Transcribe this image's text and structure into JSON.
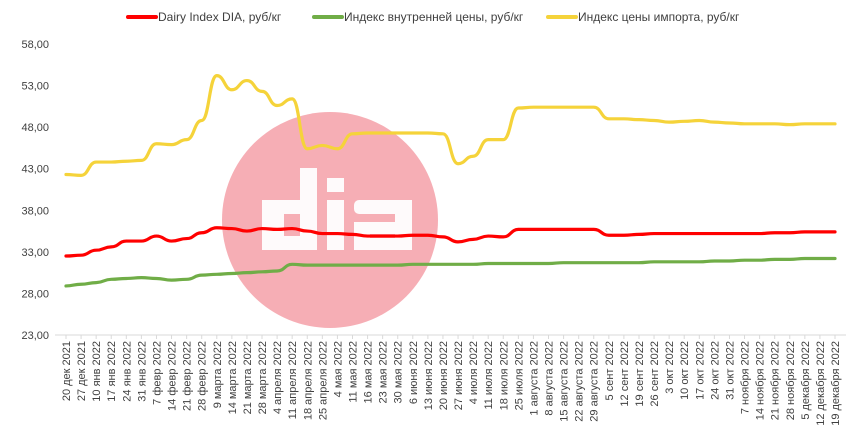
{
  "chart_data": {
    "type": "line",
    "title": "",
    "xlabel": "",
    "ylabel": "",
    "ylim": [
      23,
      58
    ],
    "yticks": [
      "23,00",
      "28,00",
      "33,00",
      "38,00",
      "43,00",
      "48,00",
      "53,00",
      "58,00"
    ],
    "legend_position": "top",
    "grid": false,
    "categories": [
      "20 дек 2021",
      "27 дек 2021",
      "10 янв 2022",
      "17 янв 2022",
      "24 янв 2022",
      "31 янв 2022",
      "7 февр 2022",
      "14 февр 2022",
      "21 февр 2022",
      "28 февр 2022",
      "9 марта 2022",
      "14 марта 2022",
      "21 марта 2022",
      "28 марта 2022",
      "4 апреля 2022",
      "11 апреля 2022",
      "18 апреля 2022",
      "25 апреля 2022",
      "4 мая 2022",
      "11 мая 2022",
      "16 мая 2022",
      "23 мая 2022",
      "30 мая 2022",
      "6 июня 2022",
      "13 июня 2022",
      "20 июня 2022",
      "27 июня 2022",
      "4 июля 2022",
      "11 июля 2022",
      "18 июля 2022",
      "25 июля 2022",
      "1 августа 2022",
      "8 августа 2022",
      "15 августа 2022",
      "22 августа 2022",
      "29 августа 2022",
      "5 сент 2022",
      "12 сент 2022",
      "19 сент 2022",
      "26 сент 2022",
      "3 окт 2022",
      "10 окт 2022",
      "17 окт 2022",
      "24 окт 2022",
      "31 окт 2022",
      "7 ноября 2022",
      "14 ноября 2022",
      "21 ноября 2022",
      "28 ноября 2022",
      "5 декабря 2022",
      "12 декабря 2022",
      "19 декабря 2022"
    ],
    "series": [
      {
        "name": "Dairy Index DIA,  руб/кг",
        "color": "#ff0000",
        "values": [
          32.5,
          32.6,
          33.2,
          33.6,
          34.3,
          34.3,
          34.9,
          34.3,
          34.6,
          35.3,
          35.9,
          35.8,
          35.5,
          35.8,
          35.7,
          35.8,
          35.5,
          35.2,
          35.2,
          35.1,
          34.9,
          34.9,
          34.9,
          35.0,
          35.0,
          34.8,
          34.2,
          34.5,
          34.9,
          34.8,
          35.7,
          35.7,
          35.7,
          35.7,
          35.7,
          35.7,
          35.0,
          35.0,
          35.1,
          35.2,
          35.2,
          35.2,
          35.2,
          35.2,
          35.2,
          35.2,
          35.2,
          35.3,
          35.3,
          35.4,
          35.4,
          35.4
        ]
      },
      {
        "name": "Индекс внутренней цены, руб/кг",
        "color": "#70ad47",
        "values": [
          28.9,
          29.1,
          29.3,
          29.7,
          29.8,
          29.9,
          29.8,
          29.6,
          29.7,
          30.2,
          30.3,
          30.4,
          30.5,
          30.6,
          30.7,
          31.5,
          31.4,
          31.4,
          31.4,
          31.4,
          31.4,
          31.4,
          31.4,
          31.5,
          31.5,
          31.5,
          31.5,
          31.5,
          31.6,
          31.6,
          31.6,
          31.6,
          31.6,
          31.7,
          31.7,
          31.7,
          31.7,
          31.7,
          31.7,
          31.8,
          31.8,
          31.8,
          31.8,
          31.9,
          31.9,
          32.0,
          32.0,
          32.1,
          32.1,
          32.2,
          32.2,
          32.2
        ]
      },
      {
        "name": "Индекс цены импорта, руб/кг",
        "color": "#f5d33a",
        "values": [
          42.3,
          42.2,
          43.8,
          43.8,
          43.9,
          44.0,
          46.0,
          45.9,
          46.5,
          48.8,
          54.2,
          52.5,
          53.6,
          52.3,
          50.6,
          51.4,
          45.4,
          45.8,
          45.4,
          47.2,
          47.3,
          47.3,
          47.3,
          47.3,
          47.3,
          47.2,
          43.6,
          44.5,
          46.5,
          46.5,
          50.3,
          50.4,
          50.4,
          50.4,
          50.4,
          50.4,
          49.0,
          49.0,
          48.9,
          48.8,
          48.6,
          48.7,
          48.8,
          48.6,
          48.5,
          48.4,
          48.4,
          48.4,
          48.3,
          48.4,
          48.4,
          48.4
        ]
      }
    ]
  },
  "watermark": {
    "text": "dia",
    "circle_color": "#f4a0a8"
  }
}
